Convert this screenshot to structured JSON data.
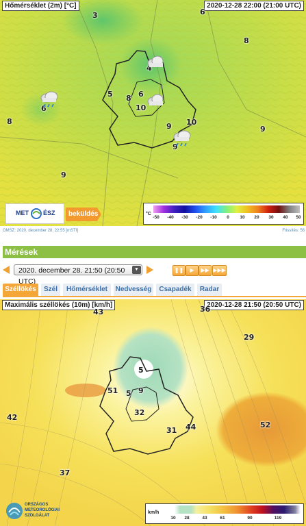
{
  "top_map": {
    "title": "Hőmérséklet (2m) [°C]",
    "datetime": "2020-12-28 22:00 (21:00 UTC)",
    "values": [
      "3",
      "6",
      "8",
      "4",
      "5",
      "8",
      "6",
      "10",
      "6",
      "8",
      "9",
      "10",
      "9",
      "9",
      "9"
    ],
    "legend": {
      "unit": "°C",
      "ticks": [
        "-50",
        "-40",
        "-30",
        "-20",
        "-10",
        "0",
        "10",
        "20",
        "30",
        "40",
        "50"
      ]
    },
    "logo_text": "MET",
    "logo_text2": "ÉSZ",
    "send_label": "beküldés"
  },
  "footer": {
    "left": "OMSZ: 2020. december 28. 22:55 [mSTf]",
    "right": "Frissítés: 56"
  },
  "meresek": {
    "header": "Mérések",
    "selected_time": "2020. december 28. 21:50 (20:50 UTC)",
    "tabs": [
      "Széllökés",
      "Szél",
      "Hőmérséklet",
      "Nedvesség",
      "Csapadék",
      "Radar"
    ],
    "active_tab": "Széllökés"
  },
  "bottom_map": {
    "title": "Maximális széllökés (10m) [km/h]",
    "datetime": "2020-12-28 21:50 (20:50 UTC)",
    "values": [
      "43",
      "36",
      "29",
      "5",
      "51",
      "5",
      "9",
      "42",
      "32",
      "31",
      "44",
      "52",
      "37"
    ],
    "legend": {
      "unit": "km/h",
      "ticks": [
        "10",
        "28",
        "43",
        "61",
        "90",
        "119"
      ]
    },
    "logo_text": [
      "ORSZÁGOS",
      "METEOROLÓGIAI",
      "SZOLGÁLAT"
    ]
  },
  "icons": [
    "cloud-rain-icon",
    "cloud-icon",
    "arrow-left-icon",
    "arrow-right-icon",
    "pause-icon",
    "play-icon",
    "fast-forward-icon",
    "skip-forward-icon"
  ]
}
